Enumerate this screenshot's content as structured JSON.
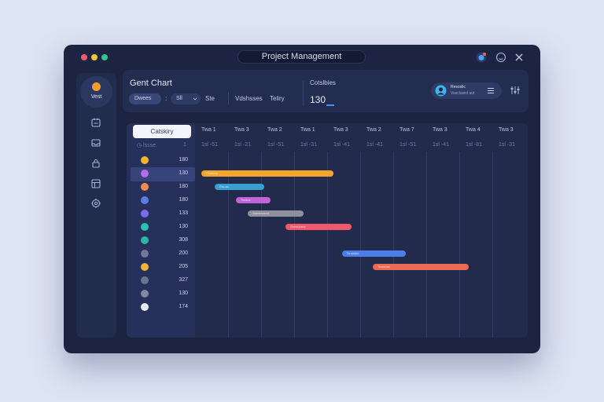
{
  "window": {
    "title": "Project Management",
    "traffic_colors": [
      "#ef5b6b",
      "#f4c143",
      "#33c58e"
    ]
  },
  "sidebar": {
    "home_label": "Vest",
    "items": [
      {
        "icon": "calendar-icon"
      },
      {
        "icon": "inbox-icon"
      },
      {
        "icon": "lock-icon"
      },
      {
        "icon": "layout-icon"
      },
      {
        "icon": "settings-icon"
      }
    ]
  },
  "header": {
    "title": "Gent Chart",
    "filter1": "Dwees",
    "separator": ":",
    "filter2": "Sll",
    "filter2_chevron": "chevron-down-icon",
    "filter3": "Ste",
    "tab_a": "Vdshsses",
    "tab_b": "Teliry",
    "stat_label": "Cotslbies",
    "stat_value": "130",
    "user": {
      "name": "Resoslic",
      "subtitle": "Vasclasinl aut"
    }
  },
  "gantt": {
    "category_button": "Catskiry",
    "sub_left": "◷ lssse",
    "sub_right": "1",
    "columns": [
      {
        "label": "Twa 1",
        "sub": "1sl -51"
      },
      {
        "label": "Twa 3",
        "sub": "1sl -21"
      },
      {
        "label": "Twa 2",
        "sub": "1sl -51"
      },
      {
        "label": "Twa 1",
        "sub": "1sl -31"
      },
      {
        "label": "Twa 3",
        "sub": "1sl -41"
      },
      {
        "label": "Twa 2",
        "sub": "1sl -41"
      },
      {
        "label": "Twa 7",
        "sub": "1sl -51"
      },
      {
        "label": "Twa 3",
        "sub": "1sl -41"
      },
      {
        "label": "Twa 4",
        "sub": "1sl -81"
      },
      {
        "label": "Twa 3",
        "sub": "1sl -31"
      }
    ],
    "rows": [
      {
        "value": "180",
        "color": "#f4b32e"
      },
      {
        "value": "130",
        "color": "#b26ce8"
      },
      {
        "value": "180",
        "color": "#f28a52"
      },
      {
        "value": "180",
        "color": "#5b7ee6"
      },
      {
        "value": "133",
        "color": "#7b6cf0"
      },
      {
        "value": "130",
        "color": "#2ec0b3"
      },
      {
        "value": "308",
        "color": "#27b6a8"
      },
      {
        "value": "200",
        "color": "#6e7a96"
      },
      {
        "value": "205",
        "color": "#f2b133"
      },
      {
        "value": "327",
        "color": "#68738f"
      },
      {
        "value": "130",
        "color": "#7e889f"
      },
      {
        "value": "174",
        "color": "#e6ecf7"
      }
    ],
    "bars": [
      {
        "row": 1,
        "start": 0.0,
        "end": 4.0,
        "color": "#f4a52d",
        "label": "Gsaiswy"
      },
      {
        "row": 2,
        "start": 0.4,
        "end": 1.9,
        "color": "#3a9fd0",
        "label": "Elsuas"
      },
      {
        "row": 3,
        "start": 1.05,
        "end": 2.1,
        "color": "#c264d6",
        "label": "Tsasus"
      },
      {
        "row": 4,
        "start": 1.4,
        "end": 3.1,
        "color": "#8d8f9c",
        "label": "Gaosiwsuut"
      },
      {
        "row": 5,
        "start": 2.55,
        "end": 4.55,
        "color": "#f0586d",
        "label": "Seusuiasw"
      },
      {
        "row": 7,
        "start": 4.25,
        "end": 6.2,
        "color": "#4c7eea",
        "label": "Tsuastas"
      },
      {
        "row": 8,
        "start": 5.2,
        "end": 8.1,
        "color": "#ef6a55",
        "label": "Vcasnas"
      }
    ]
  }
}
